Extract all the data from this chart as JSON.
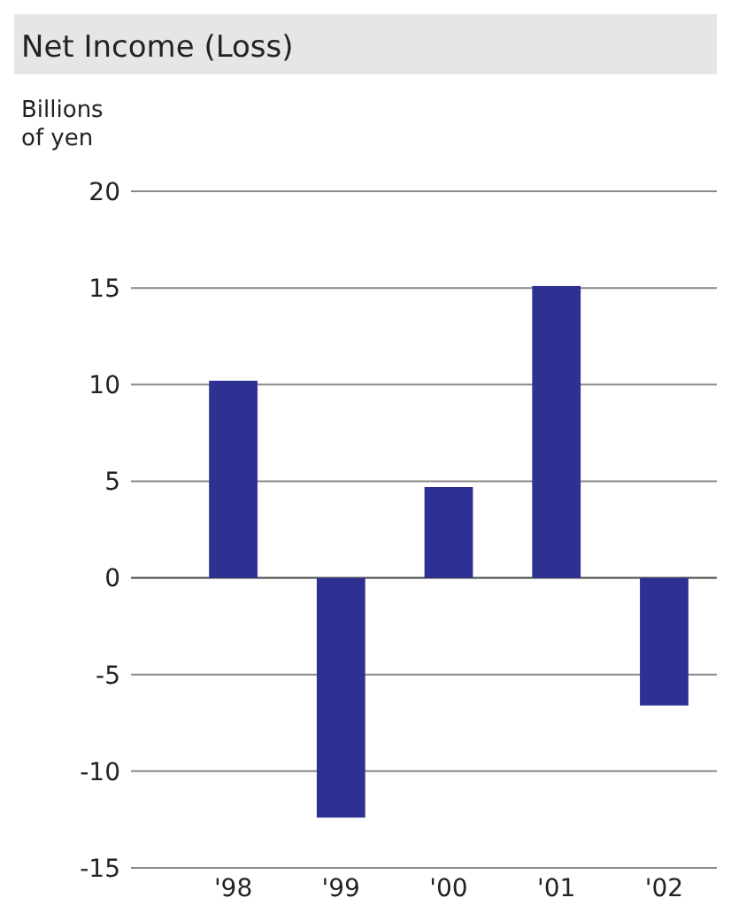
{
  "chart_data": {
    "type": "bar",
    "title": "Net Income (Loss)",
    "ylabel": "Billions of yen",
    "categories": [
      "'98",
      "'99",
      "'00",
      "'01",
      "'02"
    ],
    "values": [
      10.2,
      -12.4,
      4.7,
      15.1,
      -6.6
    ],
    "color": "#2e3192",
    "ylim": [
      -15,
      20
    ],
    "yticks": [
      -15,
      -10,
      -5,
      0,
      5,
      10,
      15,
      20
    ],
    "grid": "y"
  }
}
